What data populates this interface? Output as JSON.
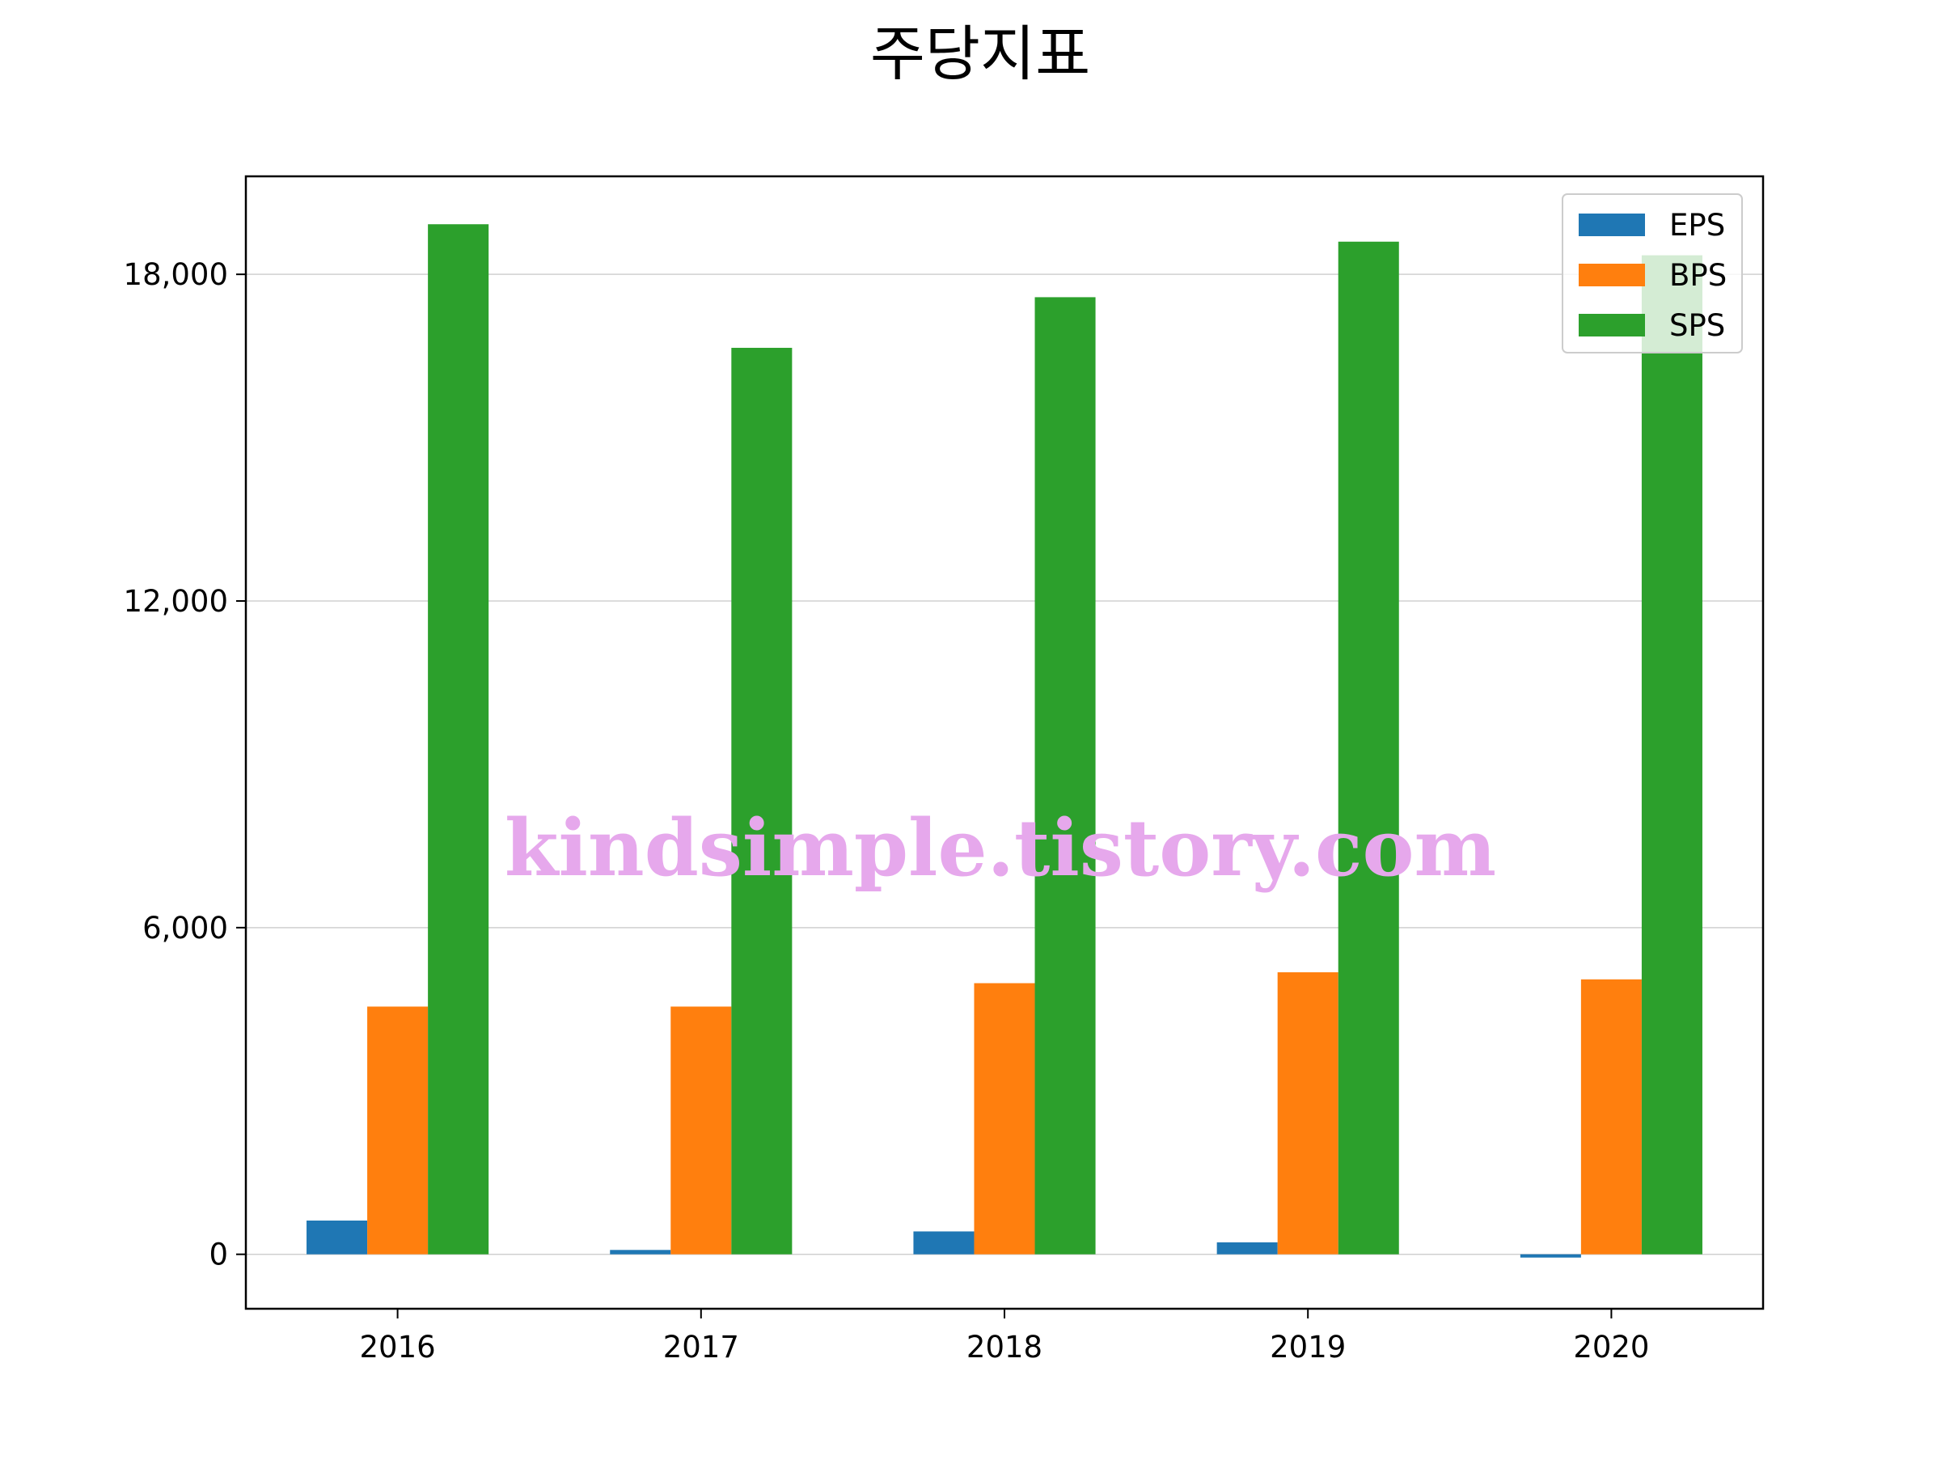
{
  "chart_data": {
    "type": "bar",
    "title": "주당지표",
    "xlabel": "",
    "ylabel": "",
    "categories": [
      "2016",
      "2017",
      "2018",
      "2019",
      "2020"
    ],
    "series": [
      {
        "name": "EPS",
        "color": "#1f77b4",
        "values": [
          620,
          80,
          420,
          220,
          -60
        ]
      },
      {
        "name": "BPS",
        "color": "#ff7f0e",
        "values": [
          4550,
          4550,
          4980,
          5180,
          5050
        ]
      },
      {
        "name": "SPS",
        "color": "#2ca02c",
        "values": [
          18920,
          16650,
          17580,
          18600,
          18350
        ]
      }
    ],
    "ylim": [
      -1000,
      19800
    ],
    "yticks": [
      0,
      6000,
      12000,
      18000
    ],
    "ytick_labels": [
      "0",
      "6,000",
      "12,000",
      "18,000"
    ],
    "grid": "y",
    "legend_position": "top-right",
    "watermark": "kindsimple.tistory.com"
  }
}
